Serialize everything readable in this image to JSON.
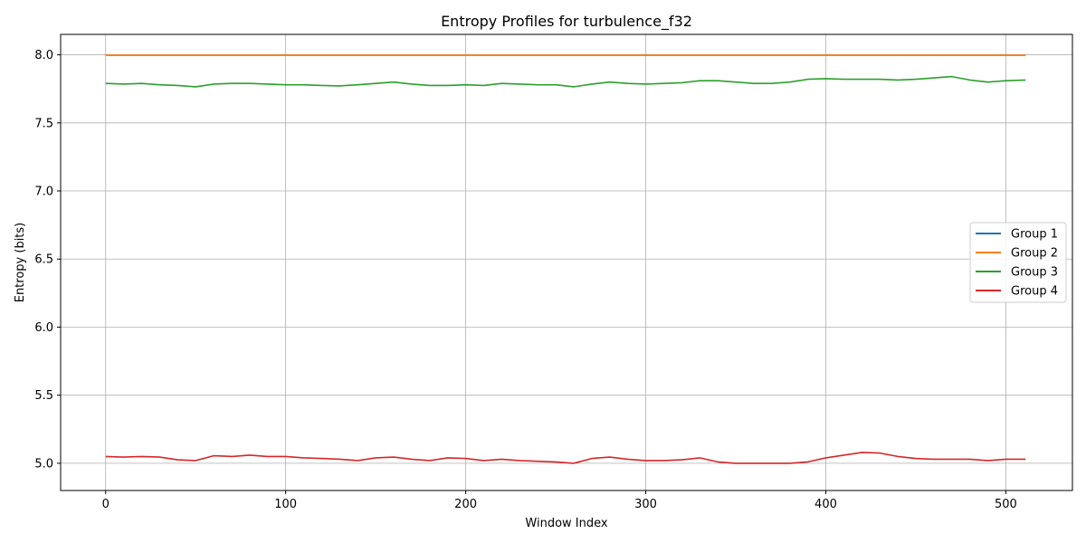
{
  "chart_data": {
    "type": "line",
    "title": "Entropy Profiles for turbulence_f32",
    "xlabel": "Window Index",
    "ylabel": "Entropy (bits)",
    "xlim": [
      -25,
      537
    ],
    "ylim": [
      4.8,
      8.15
    ],
    "xticks": [
      0,
      100,
      200,
      300,
      400,
      500
    ],
    "yticks": [
      5.0,
      5.5,
      6.0,
      6.5,
      7.0,
      7.5,
      8.0
    ],
    "ytick_labels": [
      "5.0",
      "5.5",
      "6.0",
      "6.5",
      "7.0",
      "7.5",
      "8.0"
    ],
    "grid": true,
    "legend_position": "center-right",
    "x": [
      0,
      10,
      20,
      30,
      40,
      50,
      60,
      70,
      80,
      90,
      100,
      110,
      120,
      130,
      140,
      150,
      160,
      170,
      180,
      190,
      200,
      210,
      220,
      230,
      240,
      250,
      260,
      270,
      280,
      290,
      300,
      310,
      320,
      330,
      340,
      350,
      360,
      370,
      380,
      390,
      400,
      410,
      420,
      430,
      440,
      450,
      460,
      470,
      480,
      490,
      500,
      511
    ],
    "series": [
      {
        "name": "Group 1",
        "color": "#1f77b4",
        "values": [
          7.998,
          7.998,
          7.998,
          7.998,
          7.998,
          7.998,
          7.998,
          7.998,
          7.998,
          7.998,
          7.998,
          7.998,
          7.998,
          7.998,
          7.998,
          7.998,
          7.998,
          7.998,
          7.998,
          7.998,
          7.998,
          7.998,
          7.998,
          7.998,
          7.998,
          7.998,
          7.998,
          7.998,
          7.998,
          7.998,
          7.998,
          7.998,
          7.998,
          7.998,
          7.998,
          7.998,
          7.998,
          7.998,
          7.998,
          7.998,
          7.998,
          7.998,
          7.998,
          7.998,
          7.998,
          7.998,
          7.998,
          7.998,
          7.998,
          7.998,
          7.998,
          7.998
        ]
      },
      {
        "name": "Group 2",
        "color": "#ff7f0e",
        "values": [
          7.998,
          7.998,
          7.998,
          7.998,
          7.998,
          7.998,
          7.998,
          7.998,
          7.998,
          7.998,
          7.998,
          7.998,
          7.998,
          7.998,
          7.998,
          7.998,
          7.998,
          7.998,
          7.998,
          7.998,
          7.998,
          7.998,
          7.998,
          7.998,
          7.998,
          7.998,
          7.998,
          7.998,
          7.998,
          7.998,
          7.998,
          7.998,
          7.998,
          7.998,
          7.998,
          7.998,
          7.998,
          7.998,
          7.998,
          7.998,
          7.998,
          7.998,
          7.998,
          7.998,
          7.998,
          7.998,
          7.998,
          7.998,
          7.998,
          7.998,
          7.998,
          7.998
        ]
      },
      {
        "name": "Group 3",
        "color": "#2ca02c",
        "values": [
          7.79,
          7.785,
          7.79,
          7.78,
          7.775,
          7.765,
          7.785,
          7.79,
          7.79,
          7.785,
          7.78,
          7.78,
          7.775,
          7.772,
          7.78,
          7.79,
          7.8,
          7.785,
          7.775,
          7.775,
          7.78,
          7.775,
          7.79,
          7.785,
          7.78,
          7.78,
          7.765,
          7.785,
          7.8,
          7.79,
          7.785,
          7.79,
          7.795,
          7.81,
          7.81,
          7.8,
          7.79,
          7.79,
          7.8,
          7.82,
          7.825,
          7.82,
          7.82,
          7.82,
          7.815,
          7.82,
          7.83,
          7.84,
          7.815,
          7.8,
          7.81,
          7.815
        ]
      },
      {
        "name": "Group 4",
        "color": "#d62728",
        "values": [
          5.05,
          5.045,
          5.05,
          5.045,
          5.025,
          5.02,
          5.055,
          5.05,
          5.06,
          5.05,
          5.05,
          5.04,
          5.035,
          5.03,
          5.02,
          5.04,
          5.045,
          5.03,
          5.02,
          5.04,
          5.035,
          5.02,
          5.03,
          5.02,
          5.015,
          5.01,
          5.0,
          5.035,
          5.045,
          5.03,
          5.02,
          5.02,
          5.025,
          5.04,
          5.01,
          5.0,
          5.0,
          5.0,
          5.0,
          5.01,
          5.04,
          5.06,
          5.08,
          5.075,
          5.05,
          5.035,
          5.03,
          5.03,
          5.03,
          5.02,
          5.03,
          5.03
        ]
      }
    ]
  }
}
